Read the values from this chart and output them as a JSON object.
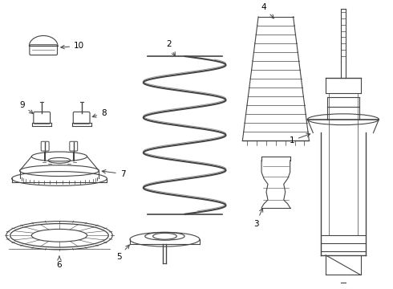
{
  "background_color": "#ffffff",
  "line_color": "#444444",
  "label_color": "#000000",
  "fig_w": 4.9,
  "fig_h": 3.6,
  "dpi": 100
}
